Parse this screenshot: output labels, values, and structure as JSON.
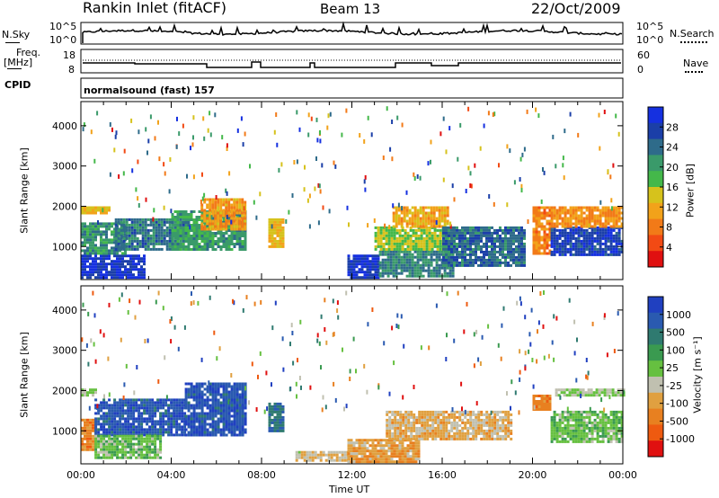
{
  "header": {
    "station": "Rankin Inlet (fitACF)",
    "beam": "Beam 13",
    "date": "22/Oct/2009"
  },
  "top_panels": {
    "nsky_label": "N.Sky",
    "nsky_ticks": [
      "10^5",
      "10^0"
    ],
    "nsearch_label": "N.Search",
    "nsearch_ticks": [
      "10^5",
      "10^0"
    ],
    "freq_label": "Freq.",
    "freq_unit": "[MHz]",
    "freq_ticks": [
      "18",
      "8"
    ],
    "nave_label": "Nave",
    "nave_ticks": [
      "60",
      "0"
    ],
    "cpid_label": "CPID",
    "cpid_text": "normalsound (fast) 157"
  },
  "colors": {
    "power_scale": [
      "#1530e0",
      "#1b3fa8",
      "#2e6b8a",
      "#3a9a6a",
      "#44b84a",
      "#d6c21c",
      "#f2a21a",
      "#f27a18",
      "#f24a14",
      "#e01010"
    ],
    "velocity_scale": [
      "#2040c0",
      "#2a5ab0",
      "#2f7a70",
      "#3a9a50",
      "#66c040",
      "#c0c0b0",
      "#e0a040",
      "#e88020",
      "#ee5a10",
      "#e01010"
    ]
  },
  "chart_data": [
    {
      "type": "heatmap",
      "name": "power",
      "ylabel": "Slant Range [km]",
      "xlabel": "Time UT",
      "x_ticks": [
        "00:00",
        "04:00",
        "08:00",
        "12:00",
        "16:00",
        "20:00",
        "00:00"
      ],
      "xlim": [
        0,
        24
      ],
      "y_ticks": [
        "4000",
        "3000",
        "2000",
        "1000"
      ],
      "ylim": [
        180,
        4600
      ],
      "colorbar_label": "Power [dB]",
      "colorbar_ticks": [
        "28",
        "24",
        "20",
        "16",
        "12",
        "8",
        "4"
      ],
      "colorbar_range": [
        0,
        30
      ],
      "regions": [
        {
          "t0": 0.0,
          "t1": 2.8,
          "r0": 200,
          "r1": 800,
          "value": 27
        },
        {
          "t0": 0.0,
          "t1": 2.0,
          "r0": 800,
          "r1": 1600,
          "value": 20
        },
        {
          "t0": 0.0,
          "t1": 1.3,
          "r0": 1800,
          "r1": 2000,
          "value": 12
        },
        {
          "t0": 1.5,
          "t1": 4.5,
          "r0": 900,
          "r1": 1700,
          "value": 22
        },
        {
          "t0": 4.0,
          "t1": 7.3,
          "r0": 900,
          "r1": 1900,
          "value": 19
        },
        {
          "t0": 5.3,
          "t1": 7.3,
          "r0": 1400,
          "r1": 2200,
          "value": 10
        },
        {
          "t0": 8.3,
          "t1": 9.0,
          "r0": 1000,
          "r1": 1700,
          "value": 12
        },
        {
          "t0": 11.8,
          "t1": 13.2,
          "r0": 200,
          "r1": 800,
          "value": 27
        },
        {
          "t0": 13.2,
          "t1": 16.5,
          "r0": 250,
          "r1": 900,
          "value": 21
        },
        {
          "t0": 13.0,
          "t1": 16.5,
          "r0": 900,
          "r1": 1500,
          "value": 15
        },
        {
          "t0": 13.8,
          "t1": 16.2,
          "r0": 1500,
          "r1": 2000,
          "value": 11
        },
        {
          "t0": 16.0,
          "t1": 19.6,
          "r0": 500,
          "r1": 1500,
          "value": 23
        },
        {
          "t0": 20.0,
          "t1": 20.8,
          "r0": 800,
          "r1": 2000,
          "value": 8
        },
        {
          "t0": 20.8,
          "t1": 24.0,
          "r0": 800,
          "r1": 1500,
          "value": 26
        },
        {
          "t0": 20.8,
          "t1": 24.0,
          "r0": 1500,
          "r1": 2000,
          "value": 9
        }
      ]
    },
    {
      "type": "heatmap",
      "name": "velocity",
      "ylabel": "Slant Range [km]",
      "xlabel": "Time UT",
      "x_ticks": [
        "00:00",
        "04:00",
        "08:00",
        "12:00",
        "16:00",
        "20:00",
        "00:00"
      ],
      "xlim": [
        0,
        24
      ],
      "y_ticks": [
        "4000",
        "3000",
        "2000",
        "1000"
      ],
      "ylim": [
        180,
        4600
      ],
      "colorbar_label": "Velocity [m s⁻¹]",
      "colorbar_ticks": [
        "1000",
        "500",
        "100",
        "25",
        "-25",
        "-100",
        "-500",
        "-1000"
      ],
      "colorbar_range": [
        -1200,
        1200
      ],
      "regions": [
        {
          "t0": 0.0,
          "t1": 0.6,
          "r0": 500,
          "r1": 1300,
          "value": -600
        },
        {
          "t0": 0.0,
          "t1": 0.6,
          "r0": 1850,
          "r1": 2050,
          "value": 0
        },
        {
          "t0": 0.6,
          "t1": 4.6,
          "r0": 900,
          "r1": 1800,
          "value": 900
        },
        {
          "t0": 0.6,
          "t1": 3.5,
          "r0": 300,
          "r1": 900,
          "value": 150
        },
        {
          "t0": 4.6,
          "t1": 7.3,
          "r0": 900,
          "r1": 2200,
          "value": 900
        },
        {
          "t0": 8.3,
          "t1": 9.0,
          "r0": 1000,
          "r1": 1700,
          "value": 700
        },
        {
          "t0": 9.5,
          "t1": 11.8,
          "r0": 250,
          "r1": 500,
          "value": -200
        },
        {
          "t0": 11.8,
          "t1": 15.0,
          "r0": 250,
          "r1": 800,
          "value": -400
        },
        {
          "t0": 13.5,
          "t1": 19.0,
          "r0": 800,
          "r1": 1500,
          "value": -300
        },
        {
          "t0": 20.0,
          "t1": 20.8,
          "r0": 1500,
          "r1": 1900,
          "value": -600
        },
        {
          "t0": 20.8,
          "t1": 24.0,
          "r0": 700,
          "r1": 1500,
          "value": 150
        },
        {
          "t0": 21.0,
          "t1": 24.0,
          "r0": 1850,
          "r1": 2050,
          "value": 0
        }
      ]
    }
  ]
}
